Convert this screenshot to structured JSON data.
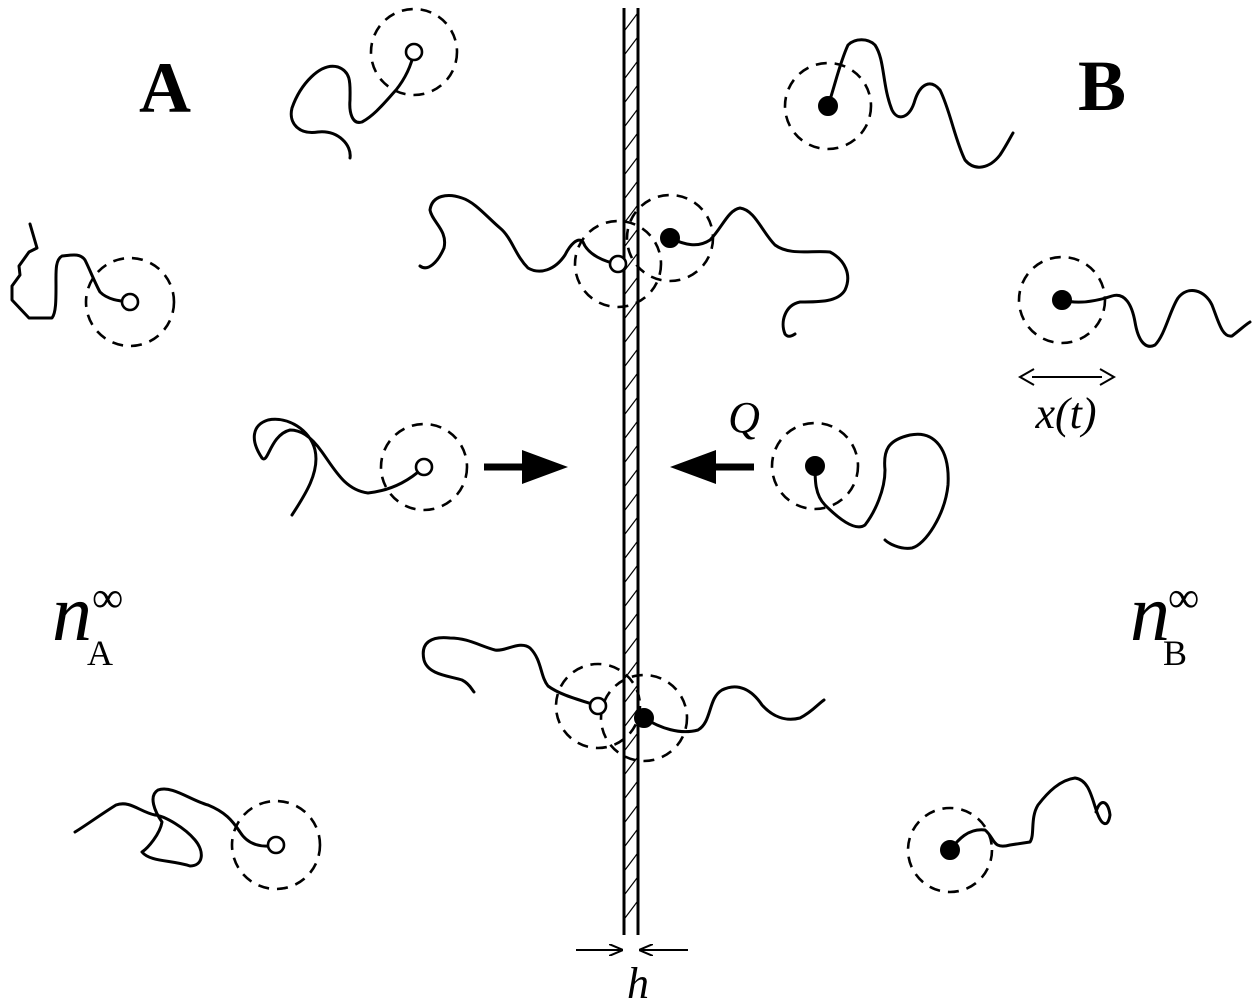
{
  "labels": {
    "region_a": "A",
    "region_b": "B",
    "n_a_symbol": "n",
    "n_a_superscript": "∞",
    "n_a_subscript": "A",
    "n_b_symbol": "n",
    "n_b_superscript": "∞",
    "n_b_subscript": "B",
    "flux": "Q",
    "displacement": "x(t)",
    "thickness": "h"
  },
  "legend": {
    "open_bead": "species A end-group (open circle)",
    "solid_bead": "species B end-group (filled circle)"
  },
  "colors": {
    "ink": "#000000",
    "background": "#ffffff"
  }
}
